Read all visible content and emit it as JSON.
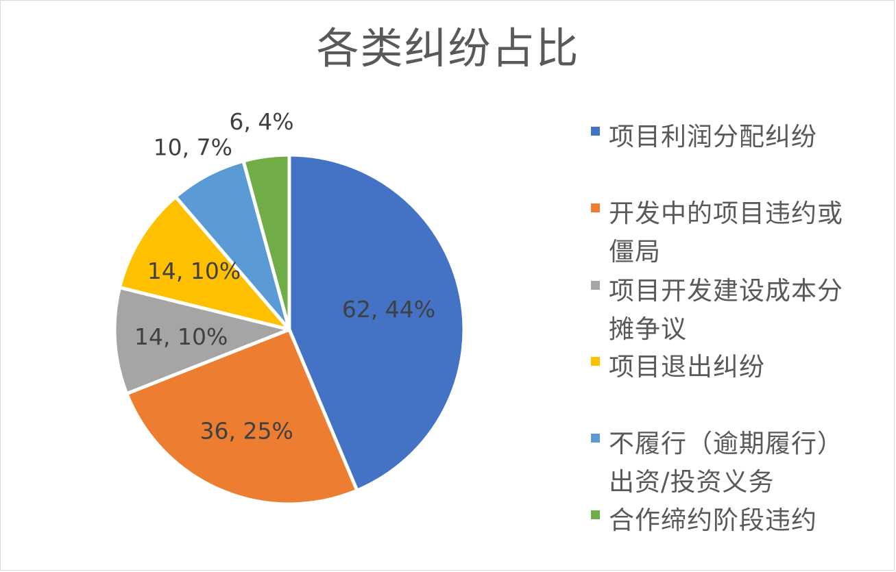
{
  "chart_data": {
    "type": "pie",
    "title": "各类纠纷占比",
    "categories": [
      "项目利润分配纠纷",
      "开发中的项目违约或僵局",
      "项目开发建设成本分摊争议",
      "项目退出纠纷",
      "不履行（逾期履行）出资/投资义务",
      "合作缔约阶段违约"
    ],
    "values": [
      62,
      36,
      14,
      14,
      10,
      6
    ],
    "data_labels": [
      "62, 44%",
      "36, 25%",
      "14, 10%",
      "14, 10%",
      "10, 7%",
      "6, 4%"
    ],
    "colors": [
      "#4472C4",
      "#ED7D31",
      "#A5A5A5",
      "#FFC000",
      "#5B9BD5",
      "#70AD47"
    ],
    "legend_position": "right",
    "legend_lines": [
      [
        "项目利润分配纠纷"
      ],
      [
        "开发中的项目违约或",
        "僵局"
      ],
      [
        "项目开发建设成本分",
        "摊争议"
      ],
      [
        "项目退出纠纷"
      ],
      [
        "不履行（逾期履行）",
        "出资/投资义务"
      ],
      [
        "合作缔约阶段违约"
      ]
    ]
  }
}
